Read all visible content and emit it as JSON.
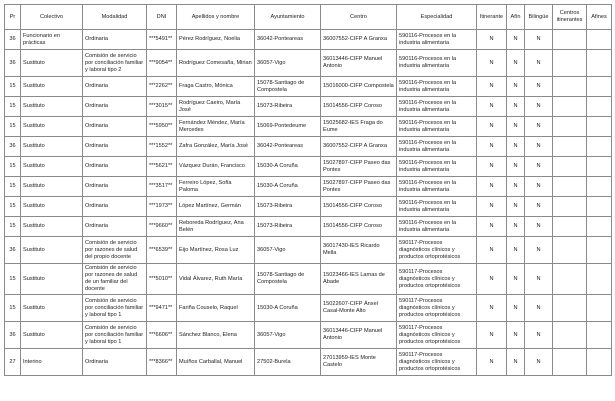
{
  "headers": [
    "Pr",
    "Colectivo",
    "Modalidad",
    "DNI",
    "Apellidos y nombre",
    "Ayuntamiento",
    "Centro",
    "Especialidad",
    "Itinerante",
    "Afín",
    "Bilingüe",
    "Centros itinerantes",
    "Afines"
  ],
  "rows": [
    [
      "36",
      "Funcionario en prácticas",
      "Ordinaria",
      "***5491**",
      "Pérez Rodríguez, Noelia",
      "36042-Ponteareas",
      "36007552-CIFP A Granxa",
      "590116-Procesos en la industria alimentaria",
      "N",
      "N",
      "N",
      "",
      ""
    ],
    [
      "36",
      "Sustituto",
      "Comisión de servicio por conciliación familiar y laboral tipo 2",
      "***9054**",
      "Rodríguez Comesaña, Mirian",
      "36057-Vigo",
      "36013446-CIFP Manuel Antonio",
      "590116-Procesos en la industria alimentaria",
      "N",
      "N",
      "N",
      "",
      ""
    ],
    [
      "15",
      "Sustituto",
      "Ordinaria",
      "***2262**",
      "Fraga Castro, Mónica",
      "15078-Santiago de Compostela",
      "15016000-CIFP Compostela",
      "590116-Procesos en la industria alimentaria",
      "N",
      "N",
      "N",
      "",
      ""
    ],
    [
      "15",
      "Sustituto",
      "Ordinaria",
      "***3015**",
      "Rodríguez Caeiro, María José",
      "15073-Ribeira",
      "15014556-CIFP Coroso",
      "590116-Procesos en la industria alimentaria",
      "N",
      "N",
      "N",
      "",
      ""
    ],
    [
      "15",
      "Sustituto",
      "Ordinaria",
      "***5950**",
      "Fernández Méndez, María Mercedes",
      "15069-Pontedeume",
      "15025682-IES Fraga do Eume",
      "590116-Procesos en la industria alimentaria",
      "N",
      "N",
      "N",
      "",
      ""
    ],
    [
      "36",
      "Sustituto",
      "Ordinaria",
      "***1552**",
      "Zafra González, María José",
      "36042-Ponteareas",
      "36007552-CIFP A Granxa",
      "590116-Procesos en la industria alimentaria",
      "N",
      "N",
      "N",
      "",
      ""
    ],
    [
      "15",
      "Sustituto",
      "Ordinaria",
      "***5621**",
      "Vázquez Durán, Francisco",
      "15030-A Coruña",
      "15027897-CIFP Paseo das Pontes",
      "590116-Procesos en la industria alimentaria",
      "N",
      "N",
      "N",
      "",
      ""
    ],
    [
      "15",
      "Sustituto",
      "Ordinaria",
      "***3517**",
      "Ferreiro López, Sofía Paloma",
      "15030-A Coruña",
      "15027897-CIFP Paseo das Pontes",
      "590116-Procesos en la industria alimentaria",
      "N",
      "N",
      "N",
      "",
      ""
    ],
    [
      "15",
      "Sustituto",
      "Ordinaria",
      "***1973**",
      "López Martínez, Germán",
      "15073-Ribeira",
      "15014556-CIFP Coroso",
      "590116-Procesos en la industria alimentaria",
      "N",
      "N",
      "N",
      "",
      ""
    ],
    [
      "15",
      "Sustituto",
      "Ordinaria",
      "***9660**",
      "Reboreda Rodríguez, Ana Belén",
      "15073-Ribeira",
      "15014556-CIFP Coroso",
      "590116-Procesos en la industria alimentaria",
      "N",
      "N",
      "N",
      "",
      ""
    ],
    [
      "36",
      "Sustituto",
      "Comisión de servicio por razones de salud del propio docente",
      "***6539**",
      "Eijo Martínez, Rosa Luz",
      "36057-Vigo",
      "36017430-IES Ricardo Mella",
      "590117-Procesos diagnósticos clínicos y productos ortoprotésicos",
      "N",
      "N",
      "N",
      "",
      ""
    ],
    [
      "15",
      "Sustituto",
      "Comisión de servicio por razones de salud de un familiar del docente",
      "***5010**",
      "Vidal Álvarez, Ruth María",
      "15078-Santiago de Compostela",
      "15023466-IES Lamas de Abade",
      "590117-Procesos diagnósticos clínicos y productos ortoprotésicos",
      "N",
      "N",
      "N",
      "",
      ""
    ],
    [
      "15",
      "Sustituto",
      "Comisión de servicio por conciliación familiar y laboral tipo 1",
      "***9471**",
      "Fariña Couselo, Raquel",
      "15030-A Coruña",
      "15022607-CIFP Ánxel Casal-Monte Alto",
      "590117-Procesos diagnósticos clínicos y productos ortoprotésicos",
      "N",
      "N",
      "N",
      "",
      ""
    ],
    [
      "36",
      "Sustituto",
      "Comisión de servicio por conciliación familiar y laboral tipo 1",
      "***6606**",
      "Sánchez Blanco, Elena",
      "36057-Vigo",
      "36013446-CIFP Manuel Antonio",
      "590117-Procesos diagnósticos clínicos y productos ortoprotésicos",
      "N",
      "N",
      "N",
      "",
      ""
    ],
    [
      "27",
      "Interino",
      "Ordinaria",
      "***8366**",
      "Muíños Carballal, Manuel",
      "27502-Burela",
      "27013959-IES Monte Castelo",
      "590117-Procesos diagnósticos clínicos y productos ortoprotésicos",
      "N",
      "N",
      "N",
      "",
      ""
    ]
  ]
}
